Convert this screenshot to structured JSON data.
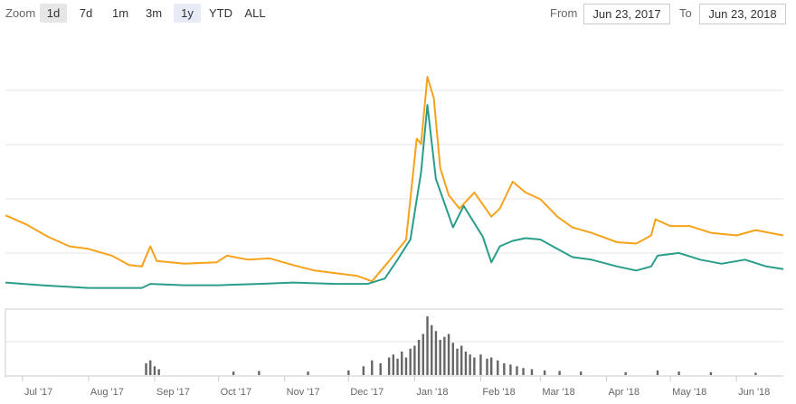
{
  "toolbar": {
    "zoom_label": "Zoom",
    "buttons": [
      "1d",
      "7d",
      "1m",
      "3m",
      "1y",
      "YTD",
      "ALL"
    ],
    "from_label": "From",
    "from_value": "Jun 23, 2017",
    "to_label": "To",
    "to_value": "Jun 23, 2018"
  },
  "colors": {
    "series_orange": "#f7a21b",
    "series_green": "#2a9d8a",
    "volume": "#666666",
    "grid": "#e6e6e6"
  },
  "chart_data": {
    "type": "line",
    "x_labels": [
      "Jul '17",
      "Aug '17",
      "Sep '17",
      "Oct '17",
      "Nov '17",
      "Dec '17",
      "Jan '18",
      "Feb '18",
      "Mar '18",
      "Apr '18",
      "May '18",
      "Jun '18"
    ],
    "xlim": [
      "2017-06-23",
      "2018-06-23"
    ],
    "series": [
      {
        "color": "#f7a21b",
        "points": [
          [
            "2017-06-23",
            0.63
          ],
          [
            "2017-07-03",
            0.56
          ],
          [
            "2017-07-13",
            0.47
          ],
          [
            "2017-07-23",
            0.4
          ],
          [
            "2017-08-01",
            0.38
          ],
          [
            "2017-08-12",
            0.33
          ],
          [
            "2017-08-20",
            0.26
          ],
          [
            "2017-08-26",
            0.25
          ],
          [
            "2017-08-30",
            0.4
          ],
          [
            "2017-09-02",
            0.29
          ],
          [
            "2017-09-15",
            0.27
          ],
          [
            "2017-09-30",
            0.28
          ],
          [
            "2017-10-05",
            0.33
          ],
          [
            "2017-10-15",
            0.3
          ],
          [
            "2017-10-25",
            0.31
          ],
          [
            "2017-11-05",
            0.26
          ],
          [
            "2017-11-15",
            0.22
          ],
          [
            "2017-11-25",
            0.2
          ],
          [
            "2017-12-05",
            0.18
          ],
          [
            "2017-12-12",
            0.14
          ],
          [
            "2017-12-20",
            0.29
          ],
          [
            "2017-12-28",
            0.45
          ],
          [
            "2018-01-02",
            1.2
          ],
          [
            "2018-01-04",
            1.16
          ],
          [
            "2018-01-07",
            1.66
          ],
          [
            "2018-01-10",
            1.5
          ],
          [
            "2018-01-13",
            0.98
          ],
          [
            "2018-01-17",
            0.78
          ],
          [
            "2018-01-22",
            0.68
          ],
          [
            "2018-01-29",
            0.8
          ],
          [
            "2018-02-06",
            0.62
          ],
          [
            "2018-02-10",
            0.68
          ],
          [
            "2018-02-16",
            0.88
          ],
          [
            "2018-02-22",
            0.8
          ],
          [
            "2018-03-01",
            0.75
          ],
          [
            "2018-03-09",
            0.62
          ],
          [
            "2018-03-16",
            0.54
          ],
          [
            "2018-03-25",
            0.5
          ],
          [
            "2018-04-06",
            0.43
          ],
          [
            "2018-04-15",
            0.42
          ],
          [
            "2018-04-22",
            0.48
          ],
          [
            "2018-04-24",
            0.6
          ],
          [
            "2018-05-01",
            0.55
          ],
          [
            "2018-05-10",
            0.55
          ],
          [
            "2018-05-20",
            0.5
          ],
          [
            "2018-06-01",
            0.48
          ],
          [
            "2018-06-10",
            0.52
          ],
          [
            "2018-06-23",
            0.48
          ]
        ]
      },
      {
        "color": "#2a9d8a",
        "points": [
          [
            "2017-06-23",
            0.13
          ],
          [
            "2017-07-10",
            0.11
          ],
          [
            "2017-08-01",
            0.09
          ],
          [
            "2017-08-26",
            0.09
          ],
          [
            "2017-08-30",
            0.12
          ],
          [
            "2017-09-15",
            0.11
          ],
          [
            "2017-10-01",
            0.11
          ],
          [
            "2017-10-20",
            0.12
          ],
          [
            "2017-11-05",
            0.13
          ],
          [
            "2017-11-25",
            0.12
          ],
          [
            "2017-12-10",
            0.12
          ],
          [
            "2017-12-18",
            0.16
          ],
          [
            "2017-12-24",
            0.3
          ],
          [
            "2017-12-30",
            0.45
          ],
          [
            "2018-01-04",
            0.95
          ],
          [
            "2018-01-07",
            1.45
          ],
          [
            "2018-01-11",
            0.9
          ],
          [
            "2018-01-15",
            0.72
          ],
          [
            "2018-01-19",
            0.54
          ],
          [
            "2018-01-24",
            0.7
          ],
          [
            "2018-02-02",
            0.47
          ],
          [
            "2018-02-06",
            0.28
          ],
          [
            "2018-02-10",
            0.4
          ],
          [
            "2018-02-16",
            0.44
          ],
          [
            "2018-02-22",
            0.46
          ],
          [
            "2018-03-01",
            0.45
          ],
          [
            "2018-03-09",
            0.38
          ],
          [
            "2018-03-16",
            0.32
          ],
          [
            "2018-03-25",
            0.3
          ],
          [
            "2018-04-06",
            0.25
          ],
          [
            "2018-04-15",
            0.22
          ],
          [
            "2018-04-22",
            0.25
          ],
          [
            "2018-04-25",
            0.33
          ],
          [
            "2018-05-05",
            0.35
          ],
          [
            "2018-05-15",
            0.3
          ],
          [
            "2018-05-25",
            0.27
          ],
          [
            "2018-06-05",
            0.3
          ],
          [
            "2018-06-15",
            0.25
          ],
          [
            "2018-06-23",
            0.23
          ]
        ]
      }
    ],
    "volume": [
      [
        "2017-08-28",
        0.2
      ],
      [
        "2017-08-30",
        0.25
      ],
      [
        "2017-09-01",
        0.15
      ],
      [
        "2017-09-03",
        0.1
      ],
      [
        "2017-10-08",
        0.06
      ],
      [
        "2017-10-20",
        0.07
      ],
      [
        "2017-11-12",
        0.06
      ],
      [
        "2017-12-01",
        0.08
      ],
      [
        "2017-12-08",
        0.15
      ],
      [
        "2017-12-12",
        0.25
      ],
      [
        "2017-12-16",
        0.2
      ],
      [
        "2017-12-20",
        0.3
      ],
      [
        "2017-12-22",
        0.35
      ],
      [
        "2017-12-24",
        0.28
      ],
      [
        "2017-12-26",
        0.4
      ],
      [
        "2017-12-28",
        0.3
      ],
      [
        "2017-12-30",
        0.45
      ],
      [
        "2018-01-01",
        0.5
      ],
      [
        "2018-01-03",
        0.6
      ],
      [
        "2018-01-05",
        0.7
      ],
      [
        "2018-01-07",
        1.0
      ],
      [
        "2018-01-09",
        0.85
      ],
      [
        "2018-01-11",
        0.75
      ],
      [
        "2018-01-13",
        0.6
      ],
      [
        "2018-01-15",
        0.65
      ],
      [
        "2018-01-17",
        0.7
      ],
      [
        "2018-01-19",
        0.55
      ],
      [
        "2018-01-21",
        0.45
      ],
      [
        "2018-01-23",
        0.5
      ],
      [
        "2018-01-25",
        0.4
      ],
      [
        "2018-01-27",
        0.35
      ],
      [
        "2018-01-29",
        0.3
      ],
      [
        "2018-02-01",
        0.35
      ],
      [
        "2018-02-04",
        0.28
      ],
      [
        "2018-02-06",
        0.3
      ],
      [
        "2018-02-09",
        0.25
      ],
      [
        "2018-02-12",
        0.2
      ],
      [
        "2018-02-15",
        0.18
      ],
      [
        "2018-02-18",
        0.15
      ],
      [
        "2018-02-21",
        0.12
      ],
      [
        "2018-02-25",
        0.1
      ],
      [
        "2018-03-03",
        0.08
      ],
      [
        "2018-03-10",
        0.07
      ],
      [
        "2018-03-20",
        0.06
      ],
      [
        "2018-04-10",
        0.05
      ],
      [
        "2018-04-25",
        0.08
      ],
      [
        "2018-05-05",
        0.06
      ],
      [
        "2018-05-20",
        0.05
      ],
      [
        "2018-06-10",
        0.04
      ]
    ]
  }
}
